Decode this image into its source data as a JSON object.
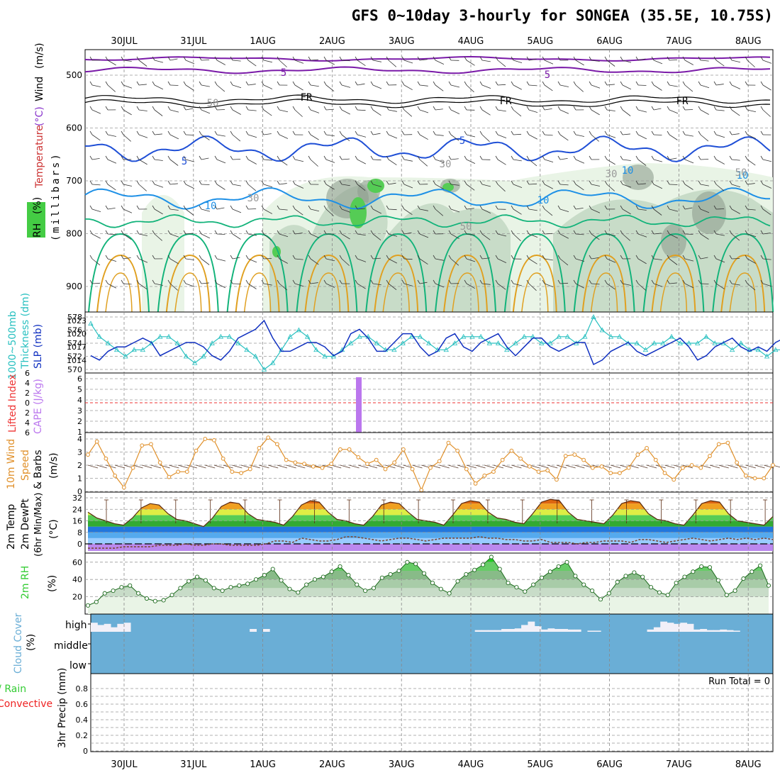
{
  "title": "GFS 0~10day 3-hourly for SONGEA (35.5E, 10.75S)",
  "date_labels": [
    "30JUL",
    "31JUL",
    "1AUG",
    "2AUG",
    "3AUG",
    "4AUG",
    "5AUG",
    "6AUG",
    "7AUG",
    "8AUG"
  ],
  "colors": {
    "temp_cold": "#7a1aa8",
    "temp_freeze": "#000000",
    "temp_5": "#1f4fd6",
    "temp_10": "#1e90e6",
    "temp_warm": "#12b37a",
    "temp_hot": "#e0a020",
    "rh_dark": "#8f9f8f",
    "rh_mid": "#c8dcc8",
    "rh_light": "#e9f4e6",
    "rh_bright": "#55cc55",
    "slp": "#1030c0",
    "thickness": "#28c0c0",
    "cape": "#bb77ee",
    "lifted": "#ee3333",
    "wind": "#e0902a",
    "cloud": "#6aaed6",
    "rain": "#33cc33",
    "convective": "#ee2222"
  },
  "panels": {
    "upper_air": {
      "ylabel_parts": [
        "Wind",
        "(m/s)",
        "Temperature",
        "(°C)",
        "RH",
        "(%)"
      ],
      "axis_label": "(millibars)",
      "pressure_ticks": [
        "500",
        "600",
        "700",
        "800",
        "900"
      ],
      "contour_labels": [
        "5",
        "5",
        "FR",
        "FR",
        "FR",
        "5",
        "5",
        "10",
        "10",
        "10",
        "10",
        "30",
        "30",
        "30",
        "50",
        "50",
        "50"
      ]
    },
    "slp_thickness": {
      "ylabel_a": "1000~500mb",
      "ylabel_b": "Thickness (dm)",
      "ylabel_c": "SLP (mb)",
      "left_ticks": [
        "578",
        "576",
        "574",
        "572",
        "570"
      ],
      "right_ticks": [
        "1023",
        "1020",
        "1017",
        "1014"
      ]
    },
    "cape": {
      "ylabel_a": "Lifted Index",
      "ylabel_b": "CAPE (J/kg)",
      "left_ticks": [
        "6",
        "4",
        "2",
        "0",
        "2",
        "4",
        "6"
      ],
      "right_ticks": [
        "6",
        "5",
        "4",
        "3",
        "2",
        "1"
      ]
    },
    "wind10m": {
      "ylabel_a": "10m Wind",
      "ylabel_b": "Speed",
      "ylabel_c": "& Barbs",
      "ylabel_d": "(m/s)",
      "ticks": [
        "4",
        "3",
        "2",
        "1",
        "0"
      ]
    },
    "temp2m": {
      "ylabel_a": "2m Temp",
      "ylabel_b": "2m DewPt",
      "ylabel_c": "(6hr Min/Max)",
      "ylabel_d": "(°C)",
      "ticks": [
        "32",
        "24",
        "16",
        "8",
        "0"
      ]
    },
    "rh2m": {
      "ylabel_a": "2m RH",
      "ylabel_b": "(%)",
      "ticks": [
        "60",
        "40",
        "20"
      ]
    },
    "cloud": {
      "ylabel_a": "Cloud Cover",
      "ylabel_b": "(%)",
      "levels": [
        "high",
        "middle",
        "low"
      ]
    },
    "precip": {
      "ylabel_a": "Total / Rain",
      "ylabel_b": "Convective",
      "ylabel_c": "3hr Precip (mm)",
      "ticks": [
        "0.8",
        "0.6",
        "0.4",
        "0.2",
        "0"
      ],
      "run_total": "Run Total = 0"
    }
  },
  "chart_data": [
    {
      "type": "line",
      "title": "1000~500mb Thickness (dm) / SLP (mb)",
      "x_days_from_29jul_18z": [
        0,
        0.125,
        0.25,
        0.375,
        0.5,
        0.625,
        0.75,
        0.875,
        1,
        1.125,
        1.25,
        1.375,
        1.5,
        1.625,
        1.75,
        1.875,
        2,
        2.125,
        2.25,
        2.375,
        2.5,
        2.625,
        2.75,
        2.875,
        3,
        3.125,
        3.25,
        3.375,
        3.5,
        3.625,
        3.75,
        3.875,
        4,
        4.125,
        4.25,
        4.375,
        4.5,
        4.625,
        4.75,
        4.875,
        5,
        5.125,
        5.25,
        5.375,
        5.5,
        5.625,
        5.75,
        5.875,
        6,
        6.125,
        6.25,
        6.375,
        6.5,
        6.625,
        6.75,
        6.875,
        7,
        7.125,
        7.25,
        7.375,
        7.5,
        7.625,
        7.75,
        7.875,
        8,
        8.125,
        8.25,
        8.375,
        8.5,
        8.625,
        8.75,
        8.875,
        9,
        9.125,
        9.25,
        9.375,
        9.5,
        9.625,
        9.75,
        9.875,
        10,
        10.125
      ],
      "series": [
        {
          "name": "SLP (mb)",
          "values": [
            1015,
            1014,
            1016,
            1017,
            1017,
            1018,
            1019,
            1018,
            1015,
            1016,
            1017,
            1018,
            1018,
            1017,
            1015,
            1014,
            1016,
            1019,
            1020,
            1021,
            1023,
            1019,
            1016,
            1016,
            1017,
            1018,
            1018,
            1017,
            1015,
            1016,
            1020,
            1021,
            1019,
            1016,
            1016,
            1018,
            1020,
            1020,
            1017,
            1015,
            1016,
            1019,
            1020,
            1017,
            1016,
            1018,
            1019,
            1020,
            1017,
            1015,
            1017,
            1019,
            1019,
            1017,
            1016,
            1017,
            1018,
            1018,
            1013,
            1014,
            1016,
            1017,
            1018,
            1016,
            1015,
            1016,
            1017,
            1018,
            1019,
            1017,
            1014,
            1015,
            1017,
            1018,
            1019,
            1017,
            1016,
            1017,
            1016,
            1018,
            1019,
            1020
          ]
        },
        {
          "name": "Thickness (dm)",
          "values": [
            577,
            575,
            574,
            573,
            572,
            573,
            573,
            574,
            575,
            575,
            574,
            572,
            571,
            572,
            574,
            575,
            575,
            574,
            573,
            572,
            570,
            571,
            573,
            575,
            576,
            575,
            573,
            572,
            572,
            573,
            574,
            575,
            575,
            574,
            573,
            573,
            574,
            575,
            575,
            574,
            573,
            573,
            574,
            575,
            575,
            575,
            574,
            574,
            573,
            574,
            575,
            575,
            574,
            574,
            575,
            575,
            574,
            575,
            578,
            576,
            575,
            575,
            574,
            574,
            573,
            574,
            574,
            575,
            574,
            574,
            574,
            575,
            574,
            574,
            573,
            574,
            573,
            573,
            572,
            573,
            573,
            574
          ]
        }
      ]
    },
    {
      "type": "bar",
      "title": "CAPE (J/kg)",
      "x": [
        "2AUG"
      ],
      "values": [
        6
      ]
    },
    {
      "type": "line",
      "title": "10m Wind Speed (m/s)",
      "values": [
        2.8,
        3.8,
        2.5,
        1.2,
        0.3,
        1.8,
        3.5,
        3.6,
        2.2,
        1.1,
        1.5,
        1.5,
        3.1,
        4,
        3.9,
        2.5,
        1.5,
        1.4,
        1.7,
        3.3,
        4.1,
        3.6,
        2.4,
        2.2,
        2.1,
        1.9,
        1.8,
        2.1,
        3.2,
        3.2,
        2.6,
        2.1,
        2.4,
        1.7,
        2.2,
        3.2,
        1.7,
        0.1,
        1.8,
        2.3,
        3.7,
        3.1,
        1.7,
        0.6,
        1.2,
        1.5,
        2.4,
        3.1,
        2.5,
        1.9,
        1.5,
        1.6,
        0.9,
        2.7,
        2.8,
        2.4,
        1.8,
        1.9,
        1.4,
        1.4,
        1.8,
        2.8,
        3.3,
        2.4,
        1.4,
        0.9,
        1.8,
        2,
        1.8,
        2.7,
        3.6,
        3.7,
        2.2,
        1.2,
        1,
        1,
        2
      ]
    },
    {
      "type": "area",
      "title": "2m Temp (°C)",
      "values": [
        22,
        18,
        16,
        14,
        13,
        18,
        25,
        28,
        27,
        21,
        17,
        16,
        14,
        12,
        18,
        26,
        29,
        28,
        21,
        17,
        16,
        15,
        13,
        19,
        27,
        30,
        29,
        22,
        17,
        16,
        14,
        13,
        19,
        27,
        29,
        28,
        22,
        17,
        16,
        15,
        13,
        20,
        28,
        30,
        29,
        22,
        18,
        17,
        15,
        14,
        21,
        29,
        31,
        30,
        22,
        17,
        16,
        15,
        14,
        20,
        28,
        30,
        29,
        21,
        17,
        16,
        14,
        13,
        20,
        28,
        30,
        29,
        21,
        16,
        15,
        14,
        13,
        19
      ]
    },
    {
      "type": "line",
      "title": "2m DewPt (°C)",
      "values": [
        -3,
        -3,
        -3,
        -3,
        -2,
        -2,
        -2,
        -2,
        -1,
        -1,
        -1,
        0,
        -1,
        -1,
        0,
        0,
        -1,
        -1,
        -1,
        -1,
        0,
        2,
        2,
        1,
        4,
        3,
        2,
        2,
        3,
        5,
        5,
        4,
        3,
        2,
        3,
        4,
        4,
        3,
        2,
        3,
        4,
        4,
        4,
        4,
        5,
        4,
        4,
        3,
        3,
        2,
        2,
        3,
        1,
        1,
        1,
        0,
        1,
        1,
        2,
        2,
        2,
        1,
        3,
        3,
        2,
        1,
        2,
        3,
        4,
        3,
        2,
        3,
        4,
        3,
        4,
        3,
        4,
        3
      ]
    },
    {
      "type": "area",
      "title": "2m RH (%)",
      "values": [
        10,
        14,
        24,
        27,
        31,
        33,
        24,
        18,
        15,
        16,
        22,
        30,
        38,
        43,
        39,
        30,
        27,
        31,
        33,
        35,
        40,
        45,
        52,
        39,
        29,
        25,
        34,
        40,
        43,
        49,
        55,
        45,
        34,
        27,
        30,
        42,
        46,
        50,
        60,
        58,
        47,
        36,
        29,
        24,
        38,
        46,
        51,
        57,
        66,
        52,
        36,
        31,
        26,
        34,
        42,
        49,
        55,
        60,
        44,
        34,
        27,
        17,
        24,
        37,
        44,
        48,
        43,
        31,
        25,
        22,
        36,
        43,
        49,
        55,
        54,
        39,
        22,
        27,
        41,
        49,
        56,
        33
      ]
    },
    {
      "type": "bar",
      "title": "Cloud Cover (%) high",
      "values": [
        80,
        60,
        70,
        40,
        70,
        80,
        0,
        0,
        0,
        0,
        0,
        0,
        0,
        0,
        0,
        0,
        0,
        0,
        0,
        0,
        0,
        0,
        0,
        0,
        25,
        0,
        25,
        0,
        0,
        0,
        0,
        0,
        0,
        0,
        0,
        0,
        0,
        0,
        0,
        0,
        0,
        0,
        0,
        0,
        0,
        0,
        0,
        0,
        0,
        0,
        0,
        0,
        0,
        0,
        0,
        0,
        0,
        0,
        15,
        15,
        15,
        15,
        25,
        25,
        30,
        60,
        90,
        50,
        20,
        30,
        25,
        25,
        20,
        20,
        0,
        10,
        10,
        0,
        0,
        0,
        0,
        0,
        0,
        0,
        20,
        40,
        90,
        80,
        70,
        80,
        70,
        20,
        25,
        15,
        15,
        20,
        15,
        10,
        0,
        0,
        0,
        0,
        0
      ]
    },
    {
      "type": "bar",
      "title": "3hr Precip (mm)",
      "values": [],
      "ylim": [
        0,
        0.8
      ]
    }
  ]
}
